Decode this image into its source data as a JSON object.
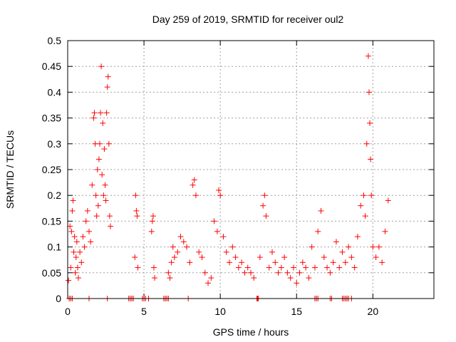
{
  "chart_data": {
    "type": "scatter",
    "title": "Day 259 of 2019, SRMTID for receiver oul2",
    "xlabel": "GPS time / hours",
    "ylabel": "SRMTID / TECUs",
    "xlim": [
      0,
      24
    ],
    "ylim": [
      0,
      0.5
    ],
    "xticks": [
      0,
      5,
      10,
      15,
      20
    ],
    "xtick_labels": [
      "0",
      "5",
      "10",
      "15",
      "20"
    ],
    "yticks": [
      0,
      0.05,
      0.1,
      0.15,
      0.2,
      0.25,
      0.3,
      0.35,
      0.4,
      0.45,
      0.5
    ],
    "ytick_labels": [
      "0",
      "0.05",
      "0.1",
      "0.15",
      "0.2",
      "0.25",
      "0.3",
      "0.35",
      "0.4",
      "0.45",
      "0.5"
    ],
    "grid": true,
    "marker": "+",
    "series": [
      {
        "name": "SRMTID",
        "color": "#ff0000",
        "x": [
          0.05,
          0.15,
          0.2,
          0.25,
          0.3,
          0.35,
          0.4,
          0.45,
          0.5,
          0.55,
          0.6,
          0.65,
          0.7,
          0.8,
          0.9,
          1.0,
          1.1,
          1.2,
          1.3,
          1.4,
          1.5,
          1.6,
          1.7,
          1.75,
          1.8,
          1.85,
          1.9,
          1.95,
          2.0,
          2.05,
          2.1,
          2.15,
          2.2,
          2.25,
          2.3,
          2.35,
          2.4,
          2.45,
          2.5,
          2.55,
          2.6,
          2.65,
          2.7,
          2.75,
          2.8,
          4.4,
          4.45,
          4.5,
          4.55,
          4.6,
          5.5,
          5.55,
          5.6,
          5.65,
          5.7,
          6.6,
          6.7,
          6.8,
          6.9,
          7.0,
          7.2,
          7.4,
          7.6,
          7.8,
          8.0,
          8.2,
          8.3,
          8.4,
          8.6,
          8.8,
          9.0,
          9.2,
          9.4,
          9.6,
          9.8,
          9.9,
          10.0,
          10.2,
          10.4,
          10.6,
          10.8,
          11.0,
          11.2,
          11.4,
          11.6,
          11.8,
          12.0,
          12.2,
          12.6,
          12.8,
          12.9,
          13.0,
          13.2,
          13.4,
          13.6,
          13.8,
          14.0,
          14.2,
          14.4,
          14.6,
          14.8,
          15.0,
          15.2,
          15.4,
          15.6,
          15.8,
          16.0,
          16.2,
          16.4,
          16.6,
          16.8,
          17.0,
          17.2,
          17.4,
          17.6,
          17.8,
          18.0,
          18.2,
          18.4,
          18.6,
          18.8,
          19.0,
          19.2,
          19.4,
          19.5,
          19.6,
          19.7,
          19.75,
          19.8,
          19.85,
          19.9,
          20.0,
          20.2,
          20.4,
          20.6,
          20.8,
          21.0,
          0.1,
          0.2,
          0.3,
          1.4,
          2.6,
          4.0,
          4.1,
          4.2,
          4.3,
          4.9,
          5.0,
          5.1,
          5.3,
          6.3,
          6.4,
          6.5,
          6.6,
          7.9,
          12.4,
          12.45,
          12.5,
          16.2,
          16.3,
          16.4,
          17.2,
          17.3,
          18.0,
          18.1,
          18.2,
          18.3,
          18.4,
          18.6
        ],
        "values": [
          0.035,
          0.14,
          0.06,
          0.13,
          0.17,
          0.19,
          0.09,
          0.12,
          0.05,
          0.08,
          0.11,
          0.06,
          0.04,
          0.09,
          0.07,
          0.12,
          0.1,
          0.15,
          0.17,
          0.13,
          0.11,
          0.22,
          0.35,
          0.36,
          0.3,
          0.2,
          0.16,
          0.25,
          0.18,
          0.27,
          0.3,
          0.36,
          0.45,
          0.24,
          0.34,
          0.2,
          0.29,
          0.22,
          0.19,
          0.36,
          0.41,
          0.43,
          0.3,
          0.16,
          0.14,
          0.08,
          0.2,
          0.17,
          0.16,
          0.06,
          0.13,
          0.15,
          0.16,
          0.06,
          0.04,
          0.05,
          0.04,
          0.07,
          0.1,
          0.08,
          0.09,
          0.12,
          0.11,
          0.1,
          0.07,
          0.22,
          0.23,
          0.2,
          0.09,
          0.08,
          0.05,
          0.03,
          0.04,
          0.15,
          0.13,
          0.21,
          0.2,
          0.12,
          0.09,
          0.07,
          0.1,
          0.08,
          0.06,
          0.07,
          0.05,
          0.06,
          0.05,
          0.04,
          0.08,
          0.18,
          0.2,
          0.16,
          0.06,
          0.09,
          0.07,
          0.05,
          0.06,
          0.08,
          0.05,
          0.04,
          0.06,
          0.03,
          0.05,
          0.07,
          0.06,
          0.04,
          0.1,
          0.06,
          0.13,
          0.17,
          0.08,
          0.06,
          0.05,
          0.07,
          0.11,
          0.06,
          0.09,
          0.07,
          0.1,
          0.08,
          0.06,
          0.12,
          0.18,
          0.2,
          0.16,
          0.3,
          0.47,
          0.4,
          0.34,
          0.27,
          0.2,
          0.1,
          0.08,
          0.1,
          0.07,
          0.13,
          0.19,
          0,
          0,
          0,
          0,
          0,
          0,
          0,
          0,
          0,
          0,
          0,
          0,
          0,
          0,
          0,
          0,
          0,
          0,
          0,
          0,
          0,
          0,
          0,
          0,
          0,
          0,
          0,
          0,
          0,
          0,
          0,
          0
        ]
      }
    ]
  }
}
